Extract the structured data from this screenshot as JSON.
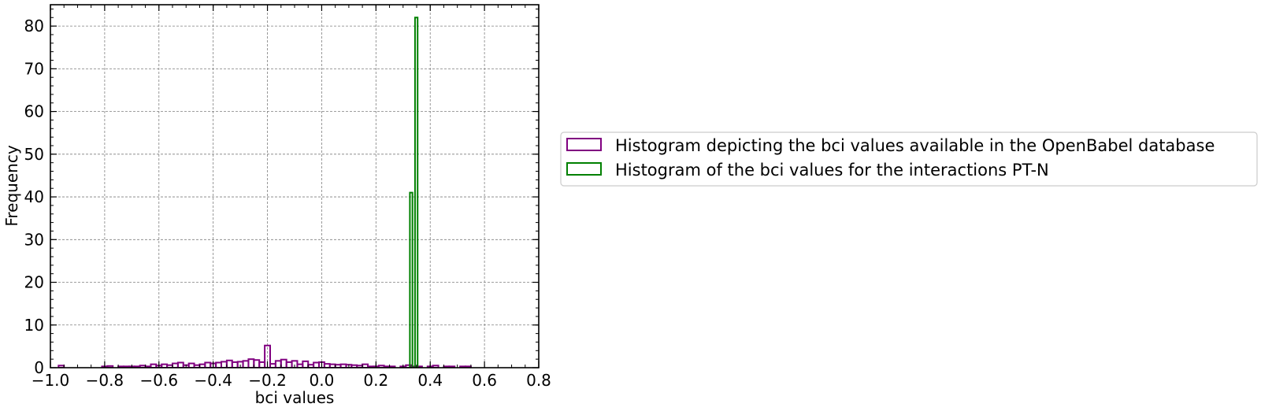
{
  "chart_data": {
    "type": "histogram",
    "title": "",
    "xlabel": "bci values",
    "ylabel": "Frequency",
    "xlim": [
      -1.0,
      0.8
    ],
    "ylim": [
      0,
      85
    ],
    "xticks": [
      -1.0,
      -0.8,
      -0.6,
      -0.4,
      -0.2,
      0.0,
      0.2,
      0.4,
      0.6,
      0.8
    ],
    "xtick_labels": [
      "−1.0",
      "−0.8",
      "−0.6",
      "−0.4",
      "−0.2",
      "0.0",
      "0.2",
      "0.4",
      "0.6",
      "0.8"
    ],
    "yticks": [
      0,
      10,
      20,
      30,
      40,
      50,
      60,
      70,
      80
    ],
    "ytick_labels": [
      "0",
      "10",
      "20",
      "30",
      "40",
      "50",
      "60",
      "70",
      "80"
    ],
    "grid": true,
    "legend_position": "outside right",
    "series": [
      {
        "name": "Histogram depicting the bci values available in the OpenBabel database",
        "color": "#800080",
        "bin_start": -0.97,
        "bin_width": 0.02,
        "counts": [
          0.5,
          0,
          0,
          0,
          0,
          0,
          0,
          0,
          0.3,
          0.4,
          0,
          0.3,
          0.3,
          0.3,
          0.3,
          0.5,
          0.3,
          0.8,
          0.5,
          0.8,
          0.6,
          1.0,
          1.2,
          0.6,
          1.0,
          0.6,
          0.8,
          1.2,
          1.0,
          1.2,
          1.4,
          1.7,
          1.3,
          1.4,
          1.6,
          2.0,
          1.8,
          1.3,
          5.2,
          0.9,
          1.6,
          1.9,
          1.3,
          1.6,
          0.8,
          1.5,
          0.7,
          1.2,
          1.3,
          0.9,
          0.8,
          0.7,
          0.8,
          0.7,
          0.6,
          0.5,
          0.8,
          0.3,
          0.3,
          0.5,
          0.3,
          0.3,
          0,
          0.3,
          0.6,
          0.3,
          0.3,
          0,
          0.3,
          0.5,
          0,
          0.3,
          0.3,
          0,
          0.3,
          0.3
        ]
      },
      {
        "name": "Histogram of the bci values for the interactions PT-N",
        "color": "#008000",
        "bin_start": 0.325,
        "bin_width": 0.0095,
        "counts": [
          41,
          0,
          82
        ]
      }
    ]
  }
}
